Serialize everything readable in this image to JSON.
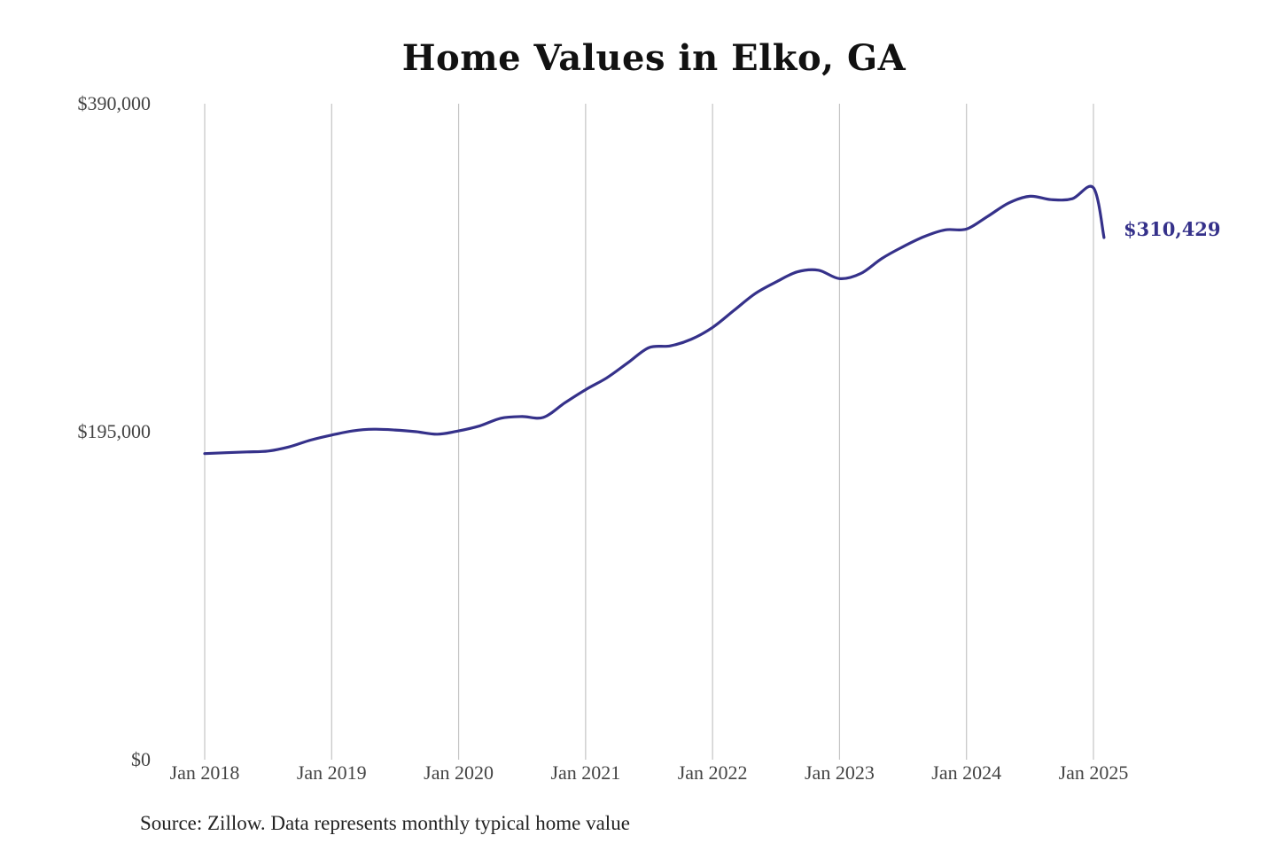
{
  "chart_data": {
    "type": "line",
    "title": "Home Values in Elko, GA",
    "xlabel": "",
    "ylabel": "",
    "x_ticks": [
      "Jan 2018",
      "Jan 2019",
      "Jan 2020",
      "Jan 2021",
      "Jan 2022",
      "Jan 2023",
      "Jan 2024",
      "Jan 2025"
    ],
    "y_ticks": [
      {
        "value": 0,
        "label": "$0"
      },
      {
        "value": 195000,
        "label": "$195,000"
      },
      {
        "value": 390000,
        "label": "$390,000"
      }
    ],
    "ylim": [
      0,
      390000
    ],
    "xlim": [
      "2018-01",
      "2025-01"
    ],
    "grid": "vertical",
    "line_color": "#35318a",
    "series": [
      {
        "x": [
          "2018-01",
          "2018-03",
          "2018-05",
          "2018-07",
          "2018-09",
          "2018-11",
          "2019-01",
          "2019-03",
          "2019-05",
          "2019-07",
          "2019-09",
          "2019-11",
          "2020-01",
          "2020-03",
          "2020-05",
          "2020-07",
          "2020-09",
          "2020-11",
          "2021-01",
          "2021-03",
          "2021-05",
          "2021-07",
          "2021-09",
          "2021-11",
          "2022-01",
          "2022-03",
          "2022-05",
          "2022-07",
          "2022-09",
          "2022-11",
          "2023-01",
          "2023-03",
          "2023-05",
          "2023-07",
          "2023-09",
          "2023-11",
          "2024-01",
          "2024-03",
          "2024-05",
          "2024-07",
          "2024-09",
          "2024-11",
          "2025-01",
          "2025-02"
        ],
        "values": [
          182000,
          182500,
          183000,
          183500,
          186000,
          190000,
          193000,
          195500,
          196500,
          196000,
          195000,
          193500,
          195500,
          198500,
          203000,
          204000,
          203500,
          212000,
          220000,
          227000,
          236000,
          245000,
          246000,
          250000,
          257000,
          267000,
          277000,
          284000,
          290000,
          291000,
          286000,
          289000,
          298000,
          305000,
          311000,
          315000,
          315500,
          323000,
          331000,
          335000,
          333000,
          333500,
          340000,
          310429
        ]
      }
    ],
    "end_label": "$310,429"
  },
  "source": "Source: Zillow. Data represents monthly typical home value"
}
